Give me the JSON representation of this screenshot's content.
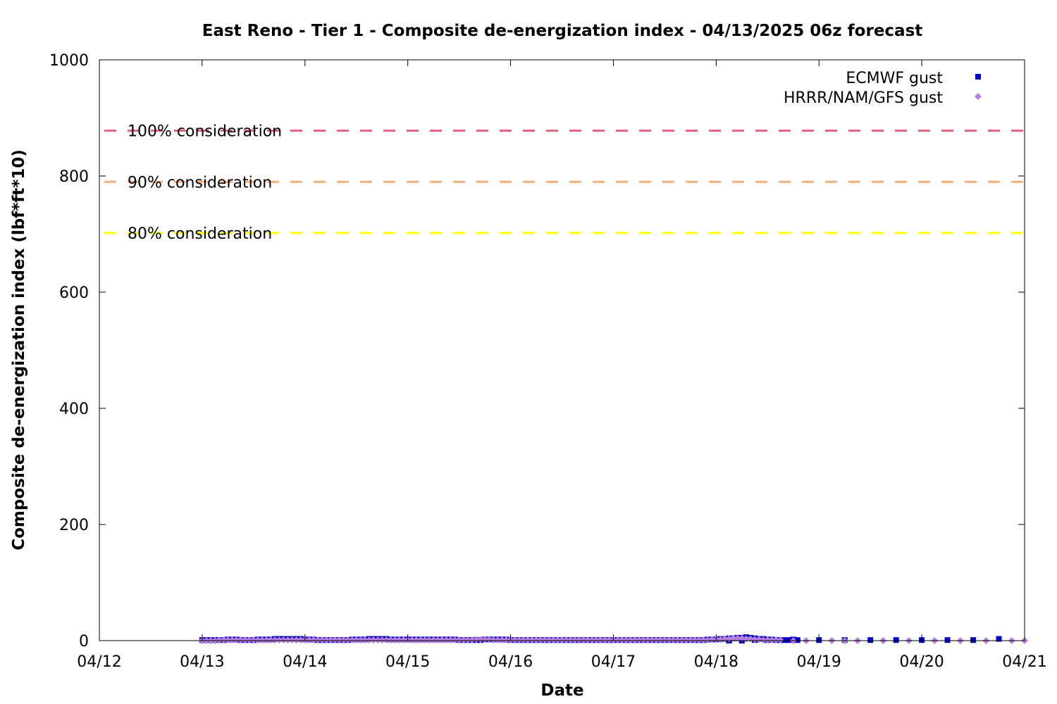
{
  "chart_data": {
    "type": "scatter",
    "title": "East Reno - Tier 1 - Composite de-energization index - 04/13/2025 06z forecast",
    "xlabel": "Date",
    "ylabel": "Composite de-energization index (lbf*ft*10)",
    "xlim": [
      "04/12",
      "04/21"
    ],
    "ylim": [
      0,
      1000
    ],
    "x_ticks": [
      "04/12",
      "04/13",
      "04/14",
      "04/15",
      "04/16",
      "04/17",
      "04/18",
      "04/19",
      "04/20",
      "04/21"
    ],
    "y_ticks": [
      0,
      200,
      400,
      600,
      800,
      1000
    ],
    "grid": false,
    "legend_position": "top-right",
    "reference_lines": [
      {
        "label": "100% consideration",
        "value": 878,
        "color": "#e0607e"
      },
      {
        "label": "90% consideration",
        "value": 790,
        "color": "#f5b07a"
      },
      {
        "label": "80% consideration",
        "value": 702,
        "color": "#ffff00"
      }
    ],
    "series": [
      {
        "name": "ECMWF gust",
        "marker": "square",
        "color": "#0000cc",
        "hourly_start": "04/13 00z",
        "hourly_values": [
          1,
          1,
          1,
          1,
          1,
          1,
          2,
          2,
          2,
          1,
          1,
          1,
          1,
          2,
          2,
          2,
          2,
          3,
          3,
          3,
          3,
          3,
          3,
          3,
          2,
          2,
          2,
          1,
          1,
          1,
          1,
          1,
          1,
          1,
          1,
          2,
          2,
          2,
          2,
          3,
          3,
          3,
          3,
          3,
          2,
          2,
          2,
          2,
          2,
          2,
          2,
          2,
          2,
          2,
          2,
          2,
          2,
          2,
          2,
          2,
          1,
          1,
          1,
          1,
          1,
          1,
          2,
          2,
          2,
          2,
          2,
          2,
          1,
          1,
          1,
          1,
          1,
          1,
          1,
          1,
          1,
          1,
          1,
          1,
          1,
          1,
          1,
          1,
          1,
          1,
          1,
          1,
          1,
          1,
          1,
          1,
          1,
          1,
          1,
          1,
          1,
          1,
          1,
          1,
          1,
          1,
          1,
          1,
          1,
          1,
          1,
          1,
          1,
          1,
          1,
          1,
          1,
          1,
          2,
          2,
          2,
          3,
          3,
          4,
          4,
          5,
          5,
          6,
          5,
          4,
          3,
          3,
          2,
          2,
          1,
          1,
          1,
          1,
          1,
          1
        ],
        "points": [
          [
            "04/18 03z",
            0
          ],
          [
            "04/18 06z",
            0
          ],
          [
            "04/18 09z",
            1
          ],
          [
            "04/18 12z",
            1
          ],
          [
            "04/18 15z",
            1
          ],
          [
            "04/18 18z",
            2
          ],
          [
            "04/19 00z",
            1
          ],
          [
            "04/19 06z",
            1
          ],
          [
            "04/19 12z",
            1
          ],
          [
            "04/19 18z",
            1
          ],
          [
            "04/20 00z",
            1
          ],
          [
            "04/20 06z",
            1
          ],
          [
            "04/20 12z",
            1
          ],
          [
            "04/20 18z",
            3
          ]
        ]
      },
      {
        "name": "HRRR/NAM/GFS gust",
        "marker": "diamond",
        "color": "#b57edc",
        "hourly_start": "04/13 00z",
        "hourly_values": [
          0,
          0,
          0,
          0,
          1,
          1,
          1,
          1,
          1,
          1,
          1,
          1,
          1,
          1,
          1,
          1,
          1,
          1,
          1,
          1,
          1,
          1,
          1,
          1,
          1,
          1,
          1,
          1,
          1,
          1,
          1,
          1,
          1,
          1,
          1,
          1,
          1,
          1,
          1,
          1,
          1,
          1,
          1,
          1,
          1,
          1,
          1,
          1,
          1,
          1,
          1,
          1,
          1,
          1,
          1,
          1,
          1,
          1,
          1,
          1,
          1,
          1,
          1,
          1,
          2,
          2,
          2,
          2,
          1,
          1,
          1,
          1,
          1,
          1,
          1,
          1,
          1,
          1,
          1,
          1,
          1,
          1,
          1,
          1,
          1,
          1,
          1,
          1,
          1,
          1,
          1,
          1,
          1,
          1,
          1,
          1,
          1,
          1,
          1,
          1,
          1,
          1,
          1,
          1,
          1,
          1,
          1,
          1,
          1,
          1,
          1,
          1,
          1,
          1,
          1,
          1,
          1,
          1,
          1,
          2,
          2,
          2,
          3,
          3,
          4,
          4,
          4,
          3,
          3,
          2,
          2,
          1,
          1,
          1,
          1,
          1
        ],
        "points": [
          [
            "04/18 18z",
            0
          ],
          [
            "04/18 21z",
            0
          ],
          [
            "04/19 03z",
            0
          ],
          [
            "04/19 06z",
            0
          ],
          [
            "04/19 09z",
            0
          ],
          [
            "04/19 15z",
            0
          ],
          [
            "04/19 21z",
            0
          ],
          [
            "04/20 03z",
            0
          ],
          [
            "04/20 09z",
            0
          ],
          [
            "04/20 15z",
            0
          ],
          [
            "04/20 21z",
            0
          ],
          [
            "04/21 00z",
            0
          ]
        ]
      }
    ]
  }
}
